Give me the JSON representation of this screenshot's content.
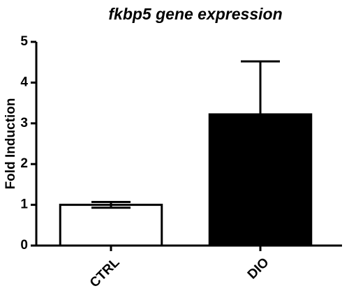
{
  "chart_data": {
    "type": "bar",
    "title": "fkbp5 gene expression",
    "y_label": "Fold Induction",
    "categories": [
      "CTRL",
      "DIO"
    ],
    "values": [
      1.0,
      3.22
    ],
    "errors": [
      0.07,
      1.3
    ],
    "colors": [
      "#ffffff",
      "#000000"
    ],
    "edge_color": "#000000",
    "ylim": [
      0,
      5
    ],
    "yticks": [
      0,
      1,
      2,
      3,
      4,
      5
    ],
    "grid": false
  }
}
